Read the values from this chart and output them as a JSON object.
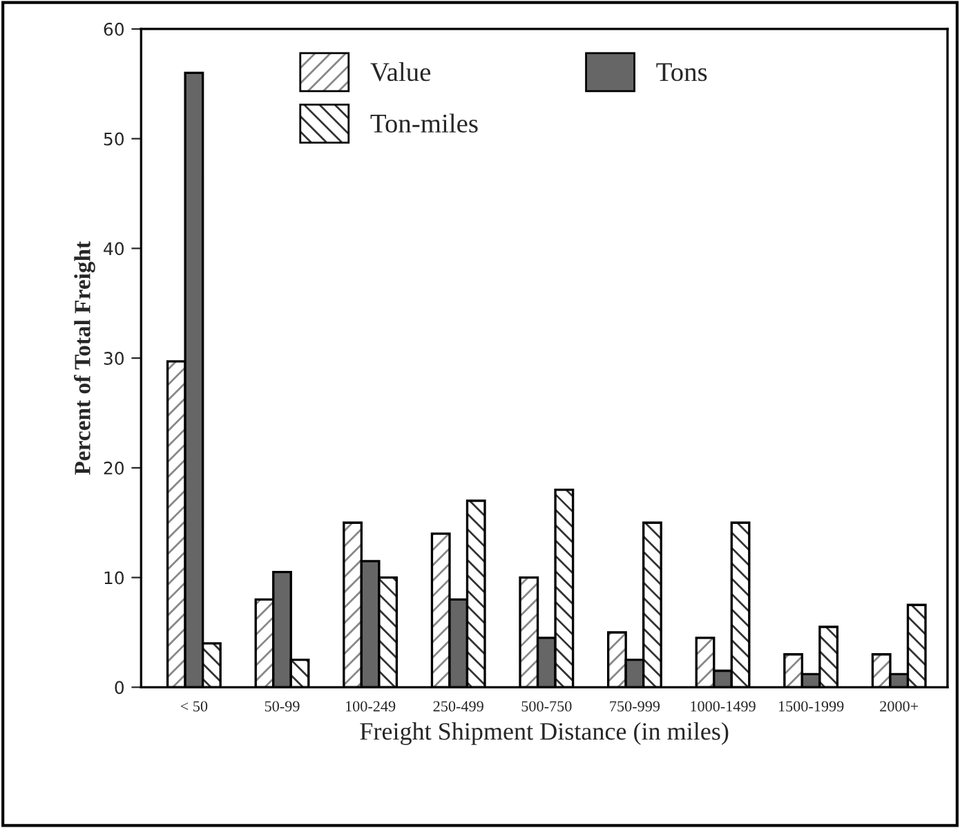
{
  "chart_data": {
    "type": "bar",
    "xlabel": "Freight Shipment Distance (in miles)",
    "ylabel": "Percent of Total Freight",
    "categories": [
      "< 50",
      "50-99",
      "100-249",
      "250-499",
      "500-750",
      "750-999",
      "1000-1499",
      "1500-1999",
      "2000+"
    ],
    "series": [
      {
        "name": "Value",
        "color": "#000000",
        "values": [
          29.7,
          8,
          15,
          14,
          10,
          5,
          4.5,
          3,
          3
        ]
      },
      {
        "name": "Tons",
        "color": "#666666",
        "values": [
          56,
          10.5,
          11.5,
          8,
          4.5,
          2.5,
          1.5,
          1.2,
          1.2
        ]
      },
      {
        "name": "Ton-miles",
        "color": "#000000",
        "values": [
          4,
          2.5,
          10,
          17,
          18,
          15,
          15,
          5.5,
          7.5
        ]
      }
    ],
    "ylim": [
      0,
      60
    ],
    "yticks": [
      0,
      10,
      20,
      30,
      40,
      50,
      60
    ],
    "legend": "top",
    "grid": false
  }
}
